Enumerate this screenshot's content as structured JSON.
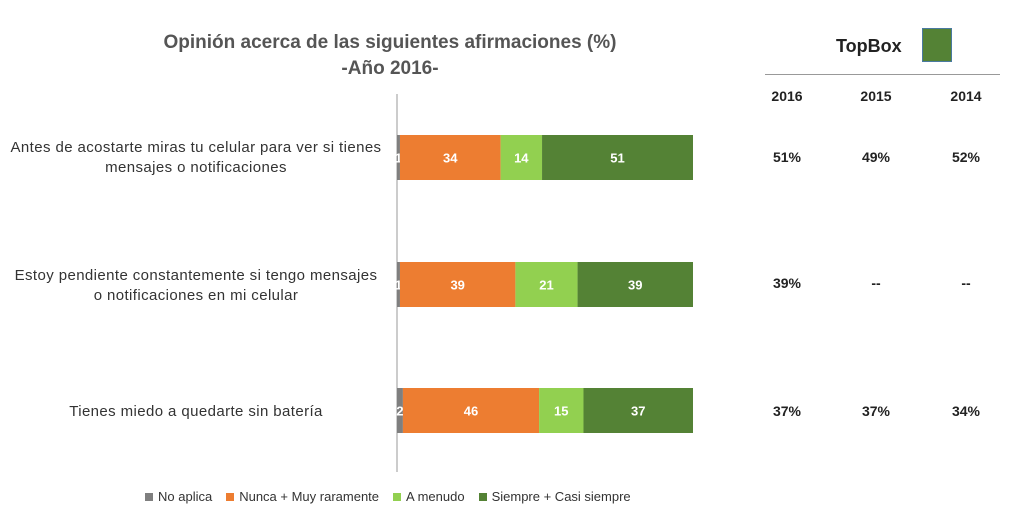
{
  "chart_data": {
    "type": "bar",
    "orientation": "horizontal-stacked",
    "title": "Opinión acerca de las siguientes afirmaciones (%)",
    "subtitle": "-Año 2016-",
    "categories": [
      "Antes de acostarte miras tu celular para ver si tienes mensajes o notificaciones",
      "Estoy pendiente constantemente si tengo mensajes o notificaciones en mi celular",
      "Tienes miedo a quedarte sin batería"
    ],
    "series": [
      {
        "name": "No aplica",
        "color": "#7f7f7f",
        "values": [
          1,
          1,
          2
        ]
      },
      {
        "name": "Nunca + Muy raramente",
        "color": "#ed7d31",
        "values": [
          34,
          39,
          46
        ]
      },
      {
        "name": "A menudo",
        "color": "#92d050",
        "values": [
          14,
          21,
          15
        ]
      },
      {
        "name": "Siempre + Casi siempre",
        "color": "#548235",
        "values": [
          51,
          39,
          37
        ]
      }
    ],
    "xlim": [
      0,
      100
    ],
    "legend_position": "bottom"
  },
  "topbox": {
    "title": "TopBox",
    "color": "#548235",
    "years": [
      "2016",
      "2015",
      "2014"
    ],
    "rows": [
      [
        "51%",
        "49%",
        "52%"
      ],
      [
        "39%",
        "--",
        "--"
      ],
      [
        "37%",
        "37%",
        "34%"
      ]
    ]
  }
}
